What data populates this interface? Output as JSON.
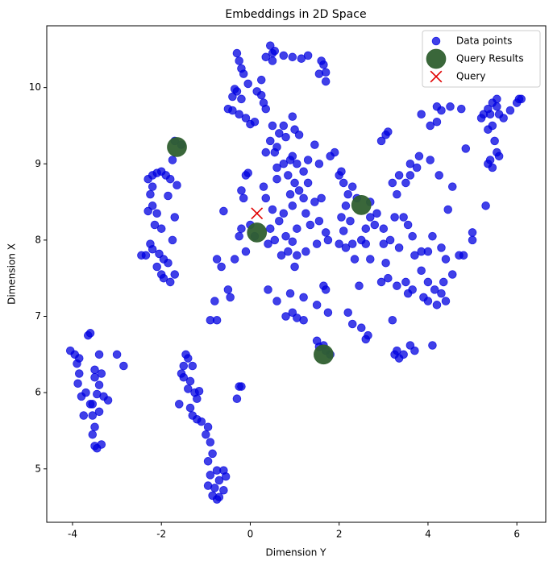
{
  "chart_data": {
    "type": "scatter",
    "title": "Embeddings in 2D Space",
    "x_label": "Dimension Y",
    "y_label": "Dimension X",
    "xlim": [
      -4.58,
      6.65
    ],
    "ylim": [
      4.3,
      10.81
    ],
    "xticks": [
      -4,
      -2,
      0,
      2,
      4,
      6
    ],
    "yticks": [
      5,
      6,
      7,
      8,
      9,
      10
    ],
    "legend": "upper right",
    "series": [
      {
        "name": "Data points",
        "color": "#0000e0",
        "alpha": 0.75,
        "marker": "o",
        "size": 50,
        "x": [
          -4.05,
          -3.95,
          -3.85,
          -3.9,
          -3.85,
          -3.88,
          -3.8,
          -3.7,
          -3.6,
          -3.65,
          -3.6,
          -3.5,
          -3.5,
          -3.4,
          -3.35,
          -3.4,
          -3.3,
          -3.2,
          -3.45,
          -3.55,
          -3.5,
          -3.55,
          -3.5,
          -3.45,
          -3.35,
          -3.75,
          -3.4,
          -3.0,
          -2.85,
          -3.55,
          -1.45,
          -1.4,
          -1.5,
          -1.3,
          -1.55,
          -1.5,
          -1.35,
          -1.4,
          -1.25,
          -1.15,
          -1.2,
          -1.6,
          -1.35,
          -1.3,
          -1.2,
          -1.1,
          -0.95,
          -1.0,
          -0.9,
          -0.85,
          -0.95,
          -0.75,
          -0.6,
          -0.9,
          -0.7,
          -0.55,
          -0.95,
          -0.8,
          -0.6,
          -0.85,
          -0.75,
          -0.7,
          -0.25,
          -0.3,
          -0.2,
          -2.3,
          -2.2,
          -2.1,
          -2.0,
          -1.9,
          -1.8,
          -2.2,
          -2.25,
          -2.2,
          -2.3,
          -2.1,
          -2.15,
          -2.0,
          -1.75,
          -2.25,
          -2.2,
          -2.35,
          -2.05,
          -1.95,
          -1.85,
          -2.0,
          -1.95,
          -1.8,
          -1.7,
          -2.1,
          -1.7,
          -1.65,
          -1.75,
          -1.55,
          -1.7,
          -2.45,
          -1.85,
          -0.3,
          -0.25,
          -0.2,
          -0.15,
          -0.05,
          -0.3,
          -0.35,
          -0.2,
          -0.4,
          -0.5,
          -0.25,
          -0.1,
          0.0,
          0.1,
          -0.4,
          0.15,
          0.25,
          0.3,
          0.35,
          0.5,
          0.5,
          0.55,
          0.45,
          0.35,
          0.25,
          0.5,
          0.65,
          0.45,
          0.55,
          0.6,
          0.8,
          0.95,
          1.0,
          1.1,
          0.75,
          0.95,
          1.15,
          1.3,
          1.65,
          1.6,
          1.7,
          1.55,
          1.7,
          1.45,
          0.0,
          0.1,
          -0.1,
          -0.05,
          -0.2,
          -0.15,
          -0.2,
          -0.25,
          -0.1,
          -0.35,
          -0.6,
          -0.75,
          -0.65,
          -0.8,
          -0.9,
          -0.75,
          -0.45,
          -0.5,
          0.3,
          0.35,
          0.6,
          0.85,
          1.2,
          1.3,
          0.9,
          1.0,
          1.1,
          1.2,
          1.45,
          1.6,
          0.95,
          0.75,
          0.5,
          0.45,
          0.65,
          0.55,
          0.8,
          0.95,
          1.05,
          1.25,
          1.35,
          1.55,
          1.7,
          1.5,
          1.75,
          1.25,
          1.05,
          0.85,
          0.7,
          0.4,
          1.0,
          0.4,
          0.6,
          0.9,
          1.2,
          0.95,
          1.05,
          1.2,
          0.8,
          1.65,
          1.7,
          1.5,
          1.75,
          0.75,
          0.95,
          0.6,
          1.05,
          1.3,
          1.55,
          1.8,
          1.9,
          2.0,
          2.05,
          2.1,
          2.2,
          2.3,
          2.15,
          2.25,
          2.05,
          2.1,
          2.0,
          2.15,
          2.3,
          2.5,
          2.6,
          2.35,
          2.7,
          2.45,
          2.2,
          2.3,
          2.5,
          2.6,
          2.65,
          2.4,
          2.85,
          2.7,
          2.7,
          2.8,
          2.6,
          1.55,
          1.7,
          1.8,
          1.5,
          1.65,
          0.35,
          0.75,
          0.9,
          2.95,
          3.05,
          3.1,
          3.2,
          3.35,
          3.3,
          3.5,
          3.6,
          3.75,
          3.8,
          3.6,
          4.05,
          4.25,
          4.45,
          4.55,
          3.0,
          3.0,
          3.15,
          3.25,
          3.35,
          3.45,
          3.55,
          3.65,
          3.7,
          3.85,
          4.0,
          4.1,
          4.3,
          4.4,
          4.7,
          4.8,
          4.55,
          4.35,
          4.15,
          4.0,
          3.9,
          4.2,
          4.3,
          4.4,
          3.1,
          3.05,
          3.3,
          3.5,
          3.55,
          3.65,
          3.85,
          4.0,
          4.1,
          3.6,
          3.7,
          3.45,
          3.3,
          3.35,
          3.25,
          3.2,
          2.95,
          5.0,
          5.0,
          5.3,
          4.2,
          4.3,
          4.5,
          4.75,
          4.85,
          4.2,
          4.05,
          3.85,
          5.25,
          5.35,
          5.45,
          5.55,
          5.6,
          5.7,
          5.85,
          6.0,
          6.05,
          6.1,
          5.55,
          5.45,
          5.35,
          5.5,
          5.55,
          5.4,
          5.45,
          5.35,
          5.6,
          5.2,
          5.4
        ],
        "values": [
          6.55,
          6.5,
          6.45,
          6.38,
          6.25,
          6.12,
          5.95,
          6.0,
          5.85,
          6.75,
          6.78,
          6.3,
          6.2,
          6.5,
          6.25,
          6.1,
          5.95,
          5.9,
          5.98,
          5.7,
          5.55,
          5.45,
          5.3,
          5.27,
          5.32,
          5.7,
          5.75,
          6.5,
          6.35,
          5.85,
          6.5,
          6.45,
          6.35,
          6.35,
          6.25,
          6.2,
          6.15,
          6.05,
          6.0,
          6.02,
          5.92,
          5.85,
          5.8,
          5.7,
          5.65,
          5.62,
          5.55,
          5.45,
          5.35,
          5.2,
          5.1,
          4.98,
          4.98,
          4.92,
          4.85,
          4.9,
          4.78,
          4.75,
          4.72,
          4.65,
          4.6,
          4.63,
          6.08,
          5.92,
          6.08,
          8.8,
          8.85,
          8.88,
          8.9,
          8.85,
          8.8,
          8.7,
          8.6,
          8.45,
          8.38,
          8.35,
          8.2,
          8.15,
          8.0,
          7.95,
          7.88,
          7.8,
          7.82,
          7.75,
          7.7,
          7.55,
          7.5,
          7.45,
          7.55,
          7.65,
          8.3,
          8.72,
          9.05,
          9.25,
          9.3,
          7.8,
          8.58,
          10.45,
          10.35,
          10.25,
          10.18,
          10.05,
          9.95,
          9.98,
          9.85,
          9.7,
          9.72,
          9.65,
          9.6,
          9.52,
          9.55,
          9.88,
          9.95,
          9.9,
          9.8,
          9.72,
          10.45,
          10.35,
          10.48,
          10.55,
          10.4,
          10.1,
          9.5,
          9.4,
          9.3,
          9.15,
          9.22,
          9.35,
          9.62,
          9.45,
          9.38,
          10.42,
          10.4,
          10.38,
          10.42,
          10.3,
          10.35,
          10.2,
          10.18,
          10.08,
          9.25,
          8.2,
          8.05,
          8.85,
          8.88,
          8.65,
          8.55,
          8.15,
          8.05,
          7.85,
          7.75,
          8.38,
          7.75,
          7.65,
          7.2,
          6.95,
          6.95,
          7.25,
          7.35,
          8.7,
          8.55,
          8.8,
          8.85,
          8.9,
          8.75,
          8.6,
          8.75,
          8.65,
          8.55,
          8.5,
          8.55,
          8.45,
          8.35,
          8.4,
          8.15,
          8.25,
          8.0,
          8.05,
          7.98,
          8.15,
          8.35,
          8.2,
          8.25,
          8.1,
          7.95,
          8.0,
          7.85,
          7.8,
          7.85,
          7.8,
          7.95,
          7.65,
          7.35,
          7.2,
          7.3,
          7.25,
          7.05,
          6.98,
          6.95,
          7.0,
          7.4,
          7.35,
          7.15,
          7.05,
          9.0,
          9.1,
          8.95,
          9.0,
          9.05,
          9.0,
          9.1,
          9.15,
          8.85,
          8.9,
          8.75,
          8.6,
          8.7,
          8.45,
          8.25,
          8.3,
          8.12,
          7.95,
          7.9,
          7.95,
          8.0,
          7.95,
          7.75,
          7.75,
          7.4,
          7.05,
          6.9,
          6.85,
          6.7,
          6.75,
          8.55,
          8.35,
          8.3,
          8.5,
          8.2,
          8.15,
          6.6,
          6.55,
          6.5,
          6.68,
          6.62,
          9.15,
          9.5,
          9.05,
          9.3,
          9.38,
          9.42,
          8.75,
          8.85,
          8.6,
          8.75,
          8.85,
          8.95,
          9.1,
          9.0,
          9.05,
          8.85,
          8.4,
          8.7,
          8.15,
          7.95,
          8.0,
          8.3,
          7.9,
          8.3,
          8.2,
          8.05,
          7.8,
          7.85,
          7.85,
          8.05,
          7.9,
          7.75,
          7.8,
          7.8,
          7.55,
          7.45,
          7.35,
          7.2,
          7.25,
          7.15,
          7.3,
          7.2,
          7.5,
          7.7,
          7.4,
          7.45,
          7.3,
          7.35,
          7.6,
          7.45,
          6.62,
          6.62,
          6.55,
          6.5,
          6.55,
          6.45,
          6.5,
          6.95,
          7.45,
          8.0,
          8.1,
          8.45,
          9.75,
          9.7,
          9.75,
          9.72,
          9.2,
          9.55,
          9.5,
          9.65,
          9.65,
          9.72,
          9.8,
          9.75,
          9.65,
          9.6,
          9.7,
          9.8,
          9.85,
          9.85,
          9.85,
          9.5,
          9.45,
          9.3,
          9.15,
          9.05,
          8.95,
          9.0,
          9.1,
          9.6,
          9.65
        ]
      },
      {
        "name": "Query Results",
        "color": "#2f5f2f",
        "alpha": 0.95,
        "marker": "o",
        "size": 300,
        "x": [
          -1.65,
          0.15,
          2.5,
          1.65
        ],
        "values": [
          9.22,
          8.1,
          8.46,
          6.5
        ]
      },
      {
        "name": "Query",
        "color": "#e00000",
        "alpha": 1,
        "marker": "x",
        "size": 200,
        "x": [
          0.15
        ],
        "values": [
          8.35
        ]
      }
    ]
  }
}
